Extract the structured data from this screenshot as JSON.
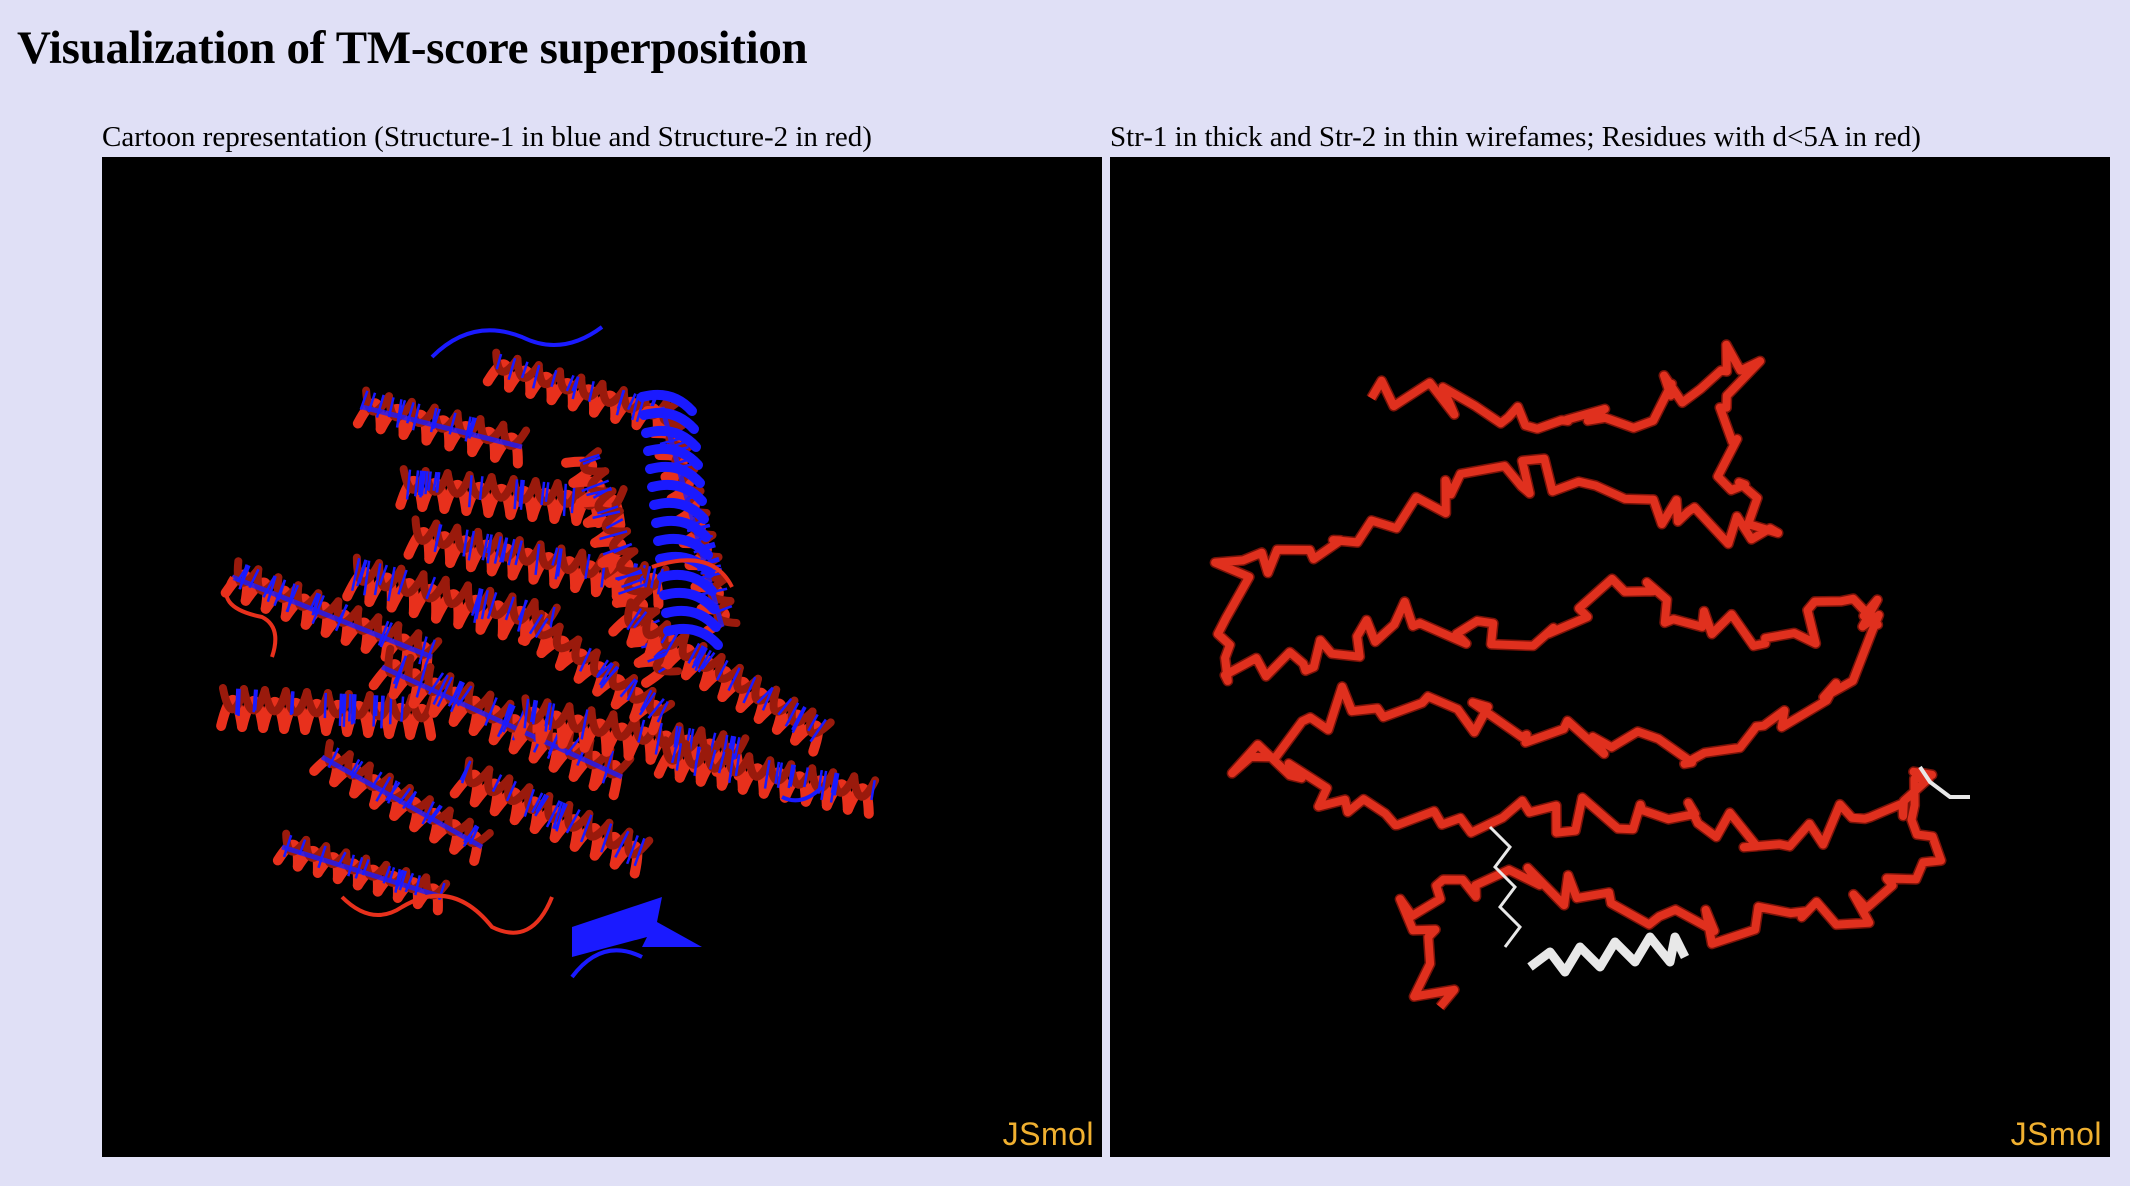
{
  "page": {
    "title": "Visualization of TM-score superposition"
  },
  "viewers": {
    "cartoon": {
      "label": "Cartoon representation (Structure-1 in blue and Structure-2 in red)",
      "logo": "JSmol",
      "colors": {
        "structure_1": "#1a1aff",
        "structure_2": "#e8301c"
      }
    },
    "wireframe": {
      "label": "Str-1 in thick and Str-2 in thin wirefames; Residues with d<5A in red)",
      "logo": "JSmol",
      "colors": {
        "close_residues": "#e0301e",
        "far_residues": "#e8e8e8"
      }
    }
  }
}
